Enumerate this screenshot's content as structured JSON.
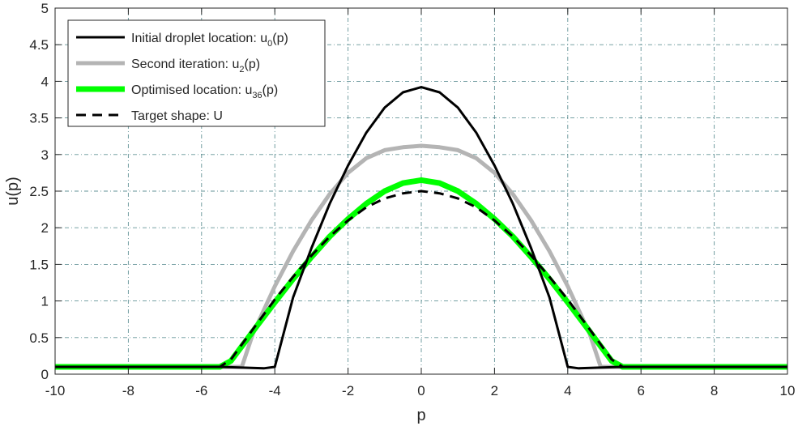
{
  "chart_data": {
    "type": "line",
    "title": "",
    "xlabel": "p",
    "ylabel": "u(p)",
    "xlim": [
      -10,
      10
    ],
    "ylim": [
      0,
      5
    ],
    "xticks": [
      -10,
      -8,
      -6,
      -4,
      -2,
      0,
      2,
      4,
      6,
      8,
      10
    ],
    "yticks": [
      0,
      0.5,
      1,
      1.5,
      2,
      2.5,
      3,
      3.5,
      4,
      4.5,
      5
    ],
    "xtick_labels": [
      "-10",
      "-8",
      "-6",
      "-4",
      "-2",
      "0",
      "2",
      "4",
      "6",
      "8",
      "10"
    ],
    "ytick_labels": [
      "0",
      "0.5",
      "1",
      "1.5",
      "2",
      "2.5",
      "3",
      "3.5",
      "4",
      "4.5",
      "5"
    ],
    "grid": true,
    "grid_style": "dash-dot",
    "legend_position": "top-left",
    "series": [
      {
        "name": "Initial droplet location: u0(p)",
        "legend_main": "Initial droplet location: u",
        "legend_sub": "0",
        "legend_tail": "(p)",
        "color": "#000000",
        "style": "solid",
        "width": 3,
        "x": [
          -10,
          -5.5,
          -4.3,
          -4.0,
          -3.5,
          -3,
          -2.5,
          -2,
          -1.5,
          -1,
          -0.5,
          0,
          0.5,
          1,
          1.5,
          2,
          2.5,
          3,
          3.5,
          4.0,
          4.3,
          5.5,
          10
        ],
        "y": [
          0.1,
          0.1,
          0.08,
          0.1,
          1.05,
          1.72,
          2.33,
          2.85,
          3.3,
          3.64,
          3.85,
          3.92,
          3.85,
          3.64,
          3.3,
          2.85,
          2.33,
          1.72,
          1.05,
          0.1,
          0.08,
          0.1,
          0.1
        ]
      },
      {
        "name": "Second iteration: u2(p)",
        "legend_main": "Second iteration: u",
        "legend_sub": "2",
        "legend_tail": "(p)",
        "color": "#b4b4b4",
        "style": "solid",
        "width": 5,
        "x": [
          -10,
          -5.2,
          -4.9,
          -4.6,
          -4,
          -3.5,
          -3,
          -2.5,
          -2,
          -1.5,
          -1,
          -0.5,
          0,
          0.5,
          1,
          1.5,
          2,
          2.5,
          3,
          3.5,
          4,
          4.6,
          4.9,
          5.2,
          10
        ],
        "y": [
          0.1,
          0.1,
          0.1,
          0.55,
          1.2,
          1.68,
          2.1,
          2.46,
          2.75,
          2.95,
          3.06,
          3.1,
          3.12,
          3.1,
          3.06,
          2.95,
          2.75,
          2.46,
          2.1,
          1.68,
          1.2,
          0.55,
          0.1,
          0.1,
          0.1
        ]
      },
      {
        "name": "Optimised location: u36(p)",
        "legend_main": "Optimised location: u",
        "legend_sub": "36",
        "legend_tail": "(p)",
        "color": "#00ff00",
        "style": "solid",
        "width": 7,
        "x": [
          -10,
          -5.5,
          -5.2,
          -4.5,
          -4,
          -3.5,
          -3,
          -2.5,
          -2,
          -1.5,
          -1,
          -0.5,
          0,
          0.5,
          1,
          1.5,
          2,
          2.5,
          3,
          3.5,
          4,
          4.5,
          5.2,
          5.5,
          10
        ],
        "y": [
          0.1,
          0.1,
          0.18,
          0.65,
          0.98,
          1.3,
          1.6,
          1.88,
          2.12,
          2.33,
          2.5,
          2.61,
          2.65,
          2.61,
          2.5,
          2.33,
          2.12,
          1.88,
          1.6,
          1.3,
          0.98,
          0.65,
          0.18,
          0.1,
          0.1
        ]
      },
      {
        "name": "Target shape: U",
        "legend_main": "Target shape: U",
        "legend_sub": "",
        "legend_tail": "",
        "color": "#000000",
        "style": "dashed",
        "width": 3,
        "x": [
          -10,
          -5.5,
          -5.2,
          -4.5,
          -4,
          -3.5,
          -3,
          -2.5,
          -2,
          -1.5,
          -1,
          -0.5,
          0,
          0.5,
          1,
          1.5,
          2,
          2.5,
          3,
          3.5,
          4,
          4.5,
          5.2,
          5.5,
          10
        ],
        "y": [
          0.1,
          0.1,
          0.2,
          0.68,
          1.02,
          1.33,
          1.62,
          1.88,
          2.1,
          2.28,
          2.4,
          2.47,
          2.5,
          2.47,
          2.4,
          2.28,
          2.1,
          1.88,
          1.62,
          1.33,
          1.02,
          0.68,
          0.2,
          0.1,
          0.1
        ]
      }
    ]
  }
}
